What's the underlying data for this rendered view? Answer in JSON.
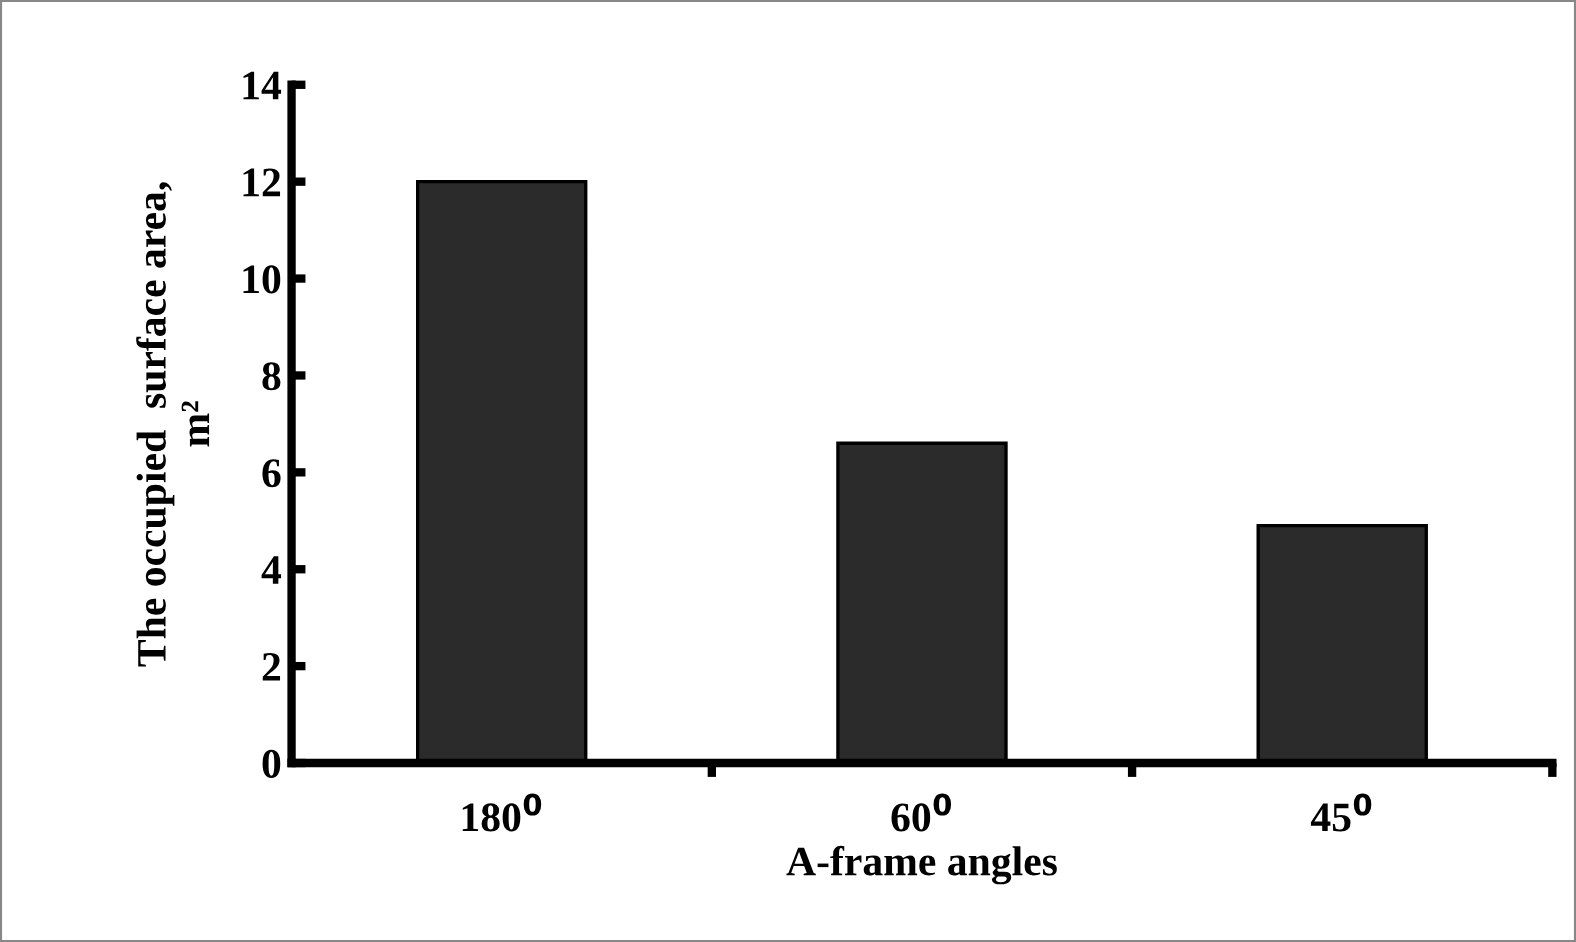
{
  "chart_data": {
    "type": "bar",
    "xlabel": "A-frame angles",
    "ylabel": "The occupied  surface area,\nm²",
    "categories": [
      "180$^{0}$",
      "60$^{0}$",
      "45$^{0}$"
    ],
    "values": [
      12,
      6.6,
      4.9
    ],
    "color": "#2b2b2b",
    "ylim": [
      0,
      14
    ],
    "yticks": [
      0,
      2,
      4,
      6,
      8,
      10,
      12,
      14
    ],
    "grid": false,
    "legend": false
  }
}
